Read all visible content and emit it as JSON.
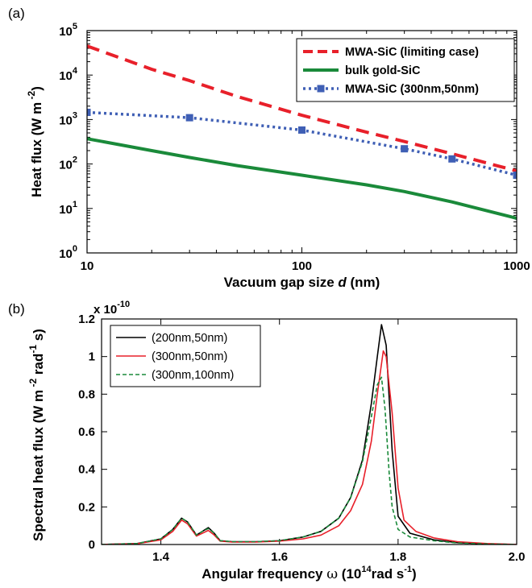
{
  "chart_data": [
    {
      "type": "line",
      "panel_label": "(a)",
      "xscale": "log",
      "yscale": "log",
      "xlim": [
        10,
        1000
      ],
      "ylim": [
        1,
        100000
      ],
      "xlabel_main": "Vacuum gap size",
      "xlabel_var": "d",
      "xlabel_unit": "(nm)",
      "ylabel_main": "Heat flux (W m",
      "ylabel_exp": "-2",
      "ylabel_close": ")",
      "xticks": [
        {
          "value": 10,
          "label": "10"
        },
        {
          "value": 100,
          "label": "100"
        },
        {
          "value": 1000,
          "label": "1000"
        }
      ],
      "yticks": [
        {
          "value": 1,
          "base": "10",
          "exp": "0"
        },
        {
          "value": 10,
          "base": "10",
          "exp": "1"
        },
        {
          "value": 100,
          "base": "10",
          "exp": "2"
        },
        {
          "value": 1000,
          "base": "10",
          "exp": "3"
        },
        {
          "value": 10000,
          "base": "10",
          "exp": "4"
        },
        {
          "value": 100000,
          "base": "10",
          "exp": "5"
        }
      ],
      "legend_position": "top-right",
      "series": [
        {
          "name": "MWA-SiC (limiting case)",
          "color": "#e8202a",
          "style": "dashed",
          "x": [
            10,
            20,
            30,
            50,
            100,
            200,
            300,
            500,
            1000
          ],
          "y": [
            45000,
            13500,
            7500,
            3300,
            1250,
            520,
            320,
            170,
            70
          ]
        },
        {
          "name": "bulk gold-SiC",
          "color": "#1a8a3a",
          "style": "solid",
          "x": [
            10,
            20,
            30,
            50,
            100,
            200,
            300,
            500,
            1000
          ],
          "y": [
            370,
            200,
            140,
            92,
            56,
            34,
            24,
            14,
            6
          ]
        },
        {
          "name": "MWA-SiC (300nm,50nm)",
          "color": "#3f5fb5",
          "style": "dotted-square",
          "x": [
            10,
            30,
            100,
            300,
            500,
            1000
          ],
          "y": [
            1450,
            1100,
            580,
            220,
            130,
            56
          ]
        }
      ]
    },
    {
      "type": "line",
      "panel_label": "(b)",
      "xlim": [
        1.3,
        2.0
      ],
      "ylim": [
        0,
        1.2
      ],
      "multiplier": "x 10",
      "multiplier_exp": "-10",
      "xlabel_main": "Angular frequency",
      "xlabel_symbol": "ω",
      "xlabel_unit_open": "(10",
      "xlabel_unit_exp1": "14",
      "xlabel_unit_mid": "rad s",
      "xlabel_unit_exp2": "-1",
      "xlabel_unit_close": ")",
      "ylabel_p1": "Spectral heat flux (W m",
      "ylabel_e1": "-2",
      "ylabel_p2": " rad",
      "ylabel_e2": "-1",
      "ylabel_p3": " s)",
      "xticks": [
        "1.4",
        "1.6",
        "1.8",
        "2.0"
      ],
      "xtick_values": [
        1.4,
        1.6,
        1.8,
        2.0
      ],
      "yticks": [
        "0",
        "0.2",
        "0.4",
        "0.6",
        "0.8",
        "1",
        "1.2"
      ],
      "ytick_values": [
        0,
        0.2,
        0.4,
        0.6,
        0.8,
        1.0,
        1.2
      ],
      "legend_position": "top-left",
      "series": [
        {
          "name": "(200nm,50nm)",
          "color": "#000000",
          "style": "solid",
          "x": [
            1.3,
            1.36,
            1.4,
            1.42,
            1.435,
            1.445,
            1.46,
            1.47,
            1.48,
            1.49,
            1.5,
            1.52,
            1.56,
            1.6,
            1.64,
            1.67,
            1.7,
            1.72,
            1.74,
            1.755,
            1.765,
            1.772,
            1.78,
            1.79,
            1.8,
            1.82,
            1.86,
            1.9,
            1.95,
            2.0
          ],
          "y": [
            0.0,
            0.005,
            0.03,
            0.08,
            0.14,
            0.12,
            0.05,
            0.07,
            0.09,
            0.06,
            0.02,
            0.015,
            0.015,
            0.02,
            0.04,
            0.07,
            0.14,
            0.25,
            0.45,
            0.75,
            1.0,
            1.17,
            1.06,
            0.5,
            0.15,
            0.06,
            0.025,
            0.01,
            0.003,
            0.0
          ]
        },
        {
          "name": "(300nm,50nm)",
          "color": "#e8202a",
          "style": "solid",
          "x": [
            1.3,
            1.36,
            1.4,
            1.42,
            1.435,
            1.445,
            1.46,
            1.47,
            1.48,
            1.49,
            1.5,
            1.52,
            1.56,
            1.6,
            1.64,
            1.67,
            1.7,
            1.72,
            1.74,
            1.755,
            1.765,
            1.775,
            1.78,
            1.79,
            1.8,
            1.81,
            1.83,
            1.86,
            1.9,
            1.95,
            2.0
          ],
          "y": [
            0.0,
            0.004,
            0.025,
            0.07,
            0.13,
            0.11,
            0.045,
            0.06,
            0.075,
            0.05,
            0.018,
            0.013,
            0.013,
            0.018,
            0.03,
            0.05,
            0.1,
            0.18,
            0.32,
            0.55,
            0.8,
            1.03,
            1.0,
            0.7,
            0.3,
            0.13,
            0.07,
            0.035,
            0.015,
            0.005,
            0.0
          ]
        },
        {
          "name": "(300nm,100nm)",
          "color": "#1a8a3a",
          "style": "dashed",
          "x": [
            1.3,
            1.36,
            1.4,
            1.42,
            1.435,
            1.445,
            1.46,
            1.47,
            1.48,
            1.49,
            1.5,
            1.52,
            1.56,
            1.6,
            1.64,
            1.67,
            1.7,
            1.72,
            1.74,
            1.755,
            1.765,
            1.772,
            1.778,
            1.785,
            1.79,
            1.8,
            1.82,
            1.86,
            1.9,
            1.95,
            2.0
          ],
          "y": [
            0.0,
            0.005,
            0.03,
            0.08,
            0.14,
            0.12,
            0.05,
            0.07,
            0.085,
            0.06,
            0.02,
            0.015,
            0.015,
            0.02,
            0.04,
            0.07,
            0.14,
            0.25,
            0.44,
            0.68,
            0.85,
            0.89,
            0.72,
            0.38,
            0.2,
            0.08,
            0.04,
            0.02,
            0.008,
            0.003,
            0.0
          ]
        }
      ]
    }
  ]
}
